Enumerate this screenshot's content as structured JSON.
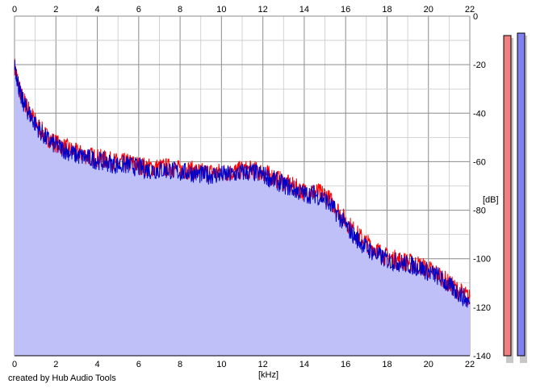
{
  "credit": "created by Hub Audio Tools",
  "colors": {
    "background": "#ffffff",
    "grid_minor": "#c8c8c8",
    "grid_major": "#8c8c8c",
    "fill": "#c0c0f8",
    "channel_left": "#ff0000",
    "channel_right": "#0000c8",
    "meter_left": "#f08080",
    "meter_right": "#8080f0"
  },
  "chart_data": {
    "type": "area",
    "xlabel": "[kHz]",
    "ylabel": "[dB]",
    "xlim": [
      0,
      22
    ],
    "ylim": [
      -140,
      0
    ],
    "x_ticks": [
      "0",
      "2",
      "4",
      "6",
      "8",
      "10",
      "12",
      "14",
      "16",
      "18",
      "20",
      "22"
    ],
    "y_ticks": [
      "0",
      "-20",
      "-40",
      "-60",
      "-80",
      "-100",
      "-120",
      "-140"
    ],
    "grid": true,
    "series": [
      {
        "channel": "left",
        "color": "#ff0000",
        "x": [
          0,
          0.3,
          0.6,
          1,
          1.5,
          2,
          2.5,
          3,
          3.5,
          4,
          4.5,
          5,
          5.5,
          6,
          6.5,
          7,
          7.5,
          8,
          8.5,
          9,
          9.5,
          10,
          10.5,
          11,
          11.5,
          12,
          12.5,
          13,
          13.5,
          14,
          14.5,
          15,
          15.5,
          16,
          16.5,
          17,
          17.5,
          18,
          18.5,
          19,
          19.5,
          20,
          20.5,
          21,
          21.5,
          22
        ],
        "y": [
          -20,
          -32,
          -37,
          -43,
          -49,
          -52,
          -54,
          -56,
          -57,
          -58,
          -59,
          -60,
          -60,
          -61,
          -62,
          -62,
          -62,
          -63,
          -63,
          -64,
          -64,
          -64,
          -64,
          -63,
          -63,
          -64,
          -66,
          -68,
          -70,
          -72,
          -72,
          -73,
          -78,
          -84,
          -89,
          -93,
          -96,
          -99,
          -100,
          -101,
          -102,
          -104,
          -106,
          -110,
          -113,
          -116
        ]
      },
      {
        "channel": "right",
        "color": "#0000c8",
        "x": [
          0,
          0.3,
          0.6,
          1,
          1.5,
          2,
          2.5,
          3,
          3.5,
          4,
          4.5,
          5,
          5.5,
          6,
          6.5,
          7,
          7.5,
          8,
          8.5,
          9,
          9.5,
          10,
          10.5,
          11,
          11.5,
          12,
          12.5,
          13,
          13.5,
          14,
          14.5,
          15,
          15.5,
          16,
          16.5,
          17,
          17.5,
          18,
          18.5,
          19,
          19.5,
          20,
          20.5,
          21,
          21.5,
          22
        ],
        "y": [
          -19,
          -33,
          -38,
          -44,
          -50,
          -53,
          -55,
          -57,
          -58,
          -59,
          -60,
          -61,
          -61,
          -62,
          -63,
          -63,
          -63,
          -64,
          -64,
          -65,
          -65,
          -65,
          -65,
          -64,
          -64,
          -65,
          -67,
          -69,
          -71,
          -73,
          -73,
          -75,
          -80,
          -86,
          -91,
          -95,
          -98,
          -100,
          -101,
          -102,
          -103,
          -105,
          -107,
          -111,
          -114,
          -118
        ]
      }
    ],
    "level_meters": [
      {
        "channel": "left",
        "peak_db": -8
      },
      {
        "channel": "right",
        "peak_db": -7
      }
    ]
  }
}
